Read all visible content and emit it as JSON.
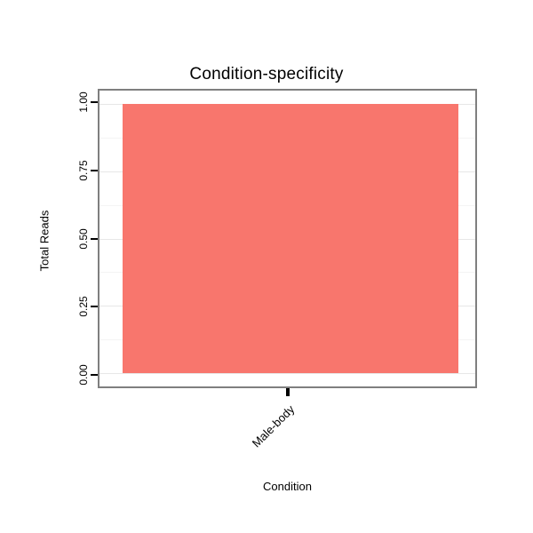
{
  "chart_data": {
    "type": "bar",
    "title": "Condition-specificity",
    "xlabel": "Condition",
    "ylabel": "Total Reads",
    "categories": [
      "Male-body"
    ],
    "values": [
      1.0
    ],
    "ylim": [
      0,
      1
    ],
    "yticks": [
      "0.00",
      "0.25",
      "0.50",
      "0.75",
      "1.00"
    ],
    "yticks_minor": [
      0.125,
      0.375,
      0.625,
      0.875
    ],
    "bar_color": "#F8766D",
    "panel_border_color": "#7f7f7f",
    "grid": "on",
    "legend": "none"
  }
}
